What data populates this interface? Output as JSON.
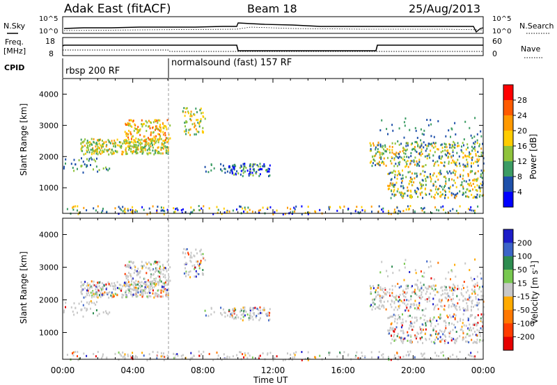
{
  "header": {
    "radar": "Adak East (fitACF)",
    "beam": "Beam 18",
    "date": "25/Aug/2013"
  },
  "panels": {
    "noise": {
      "left_label": "N.Sky",
      "right_label": "N.Search",
      "left_ticks": [
        "10^5",
        "10^0"
      ],
      "right_ticks": [
        "10^5",
        "10^0"
      ]
    },
    "freq": {
      "left_label_1": "Freq.",
      "left_label_2": "[MHz]",
      "right_label": "Nave",
      "left_ticks": [
        "18",
        "8"
      ],
      "right_ticks": [
        "60",
        "0"
      ]
    },
    "cpid": {
      "label": "CPID",
      "segments": [
        "rbsp 200 RF",
        "normalsound (fast) 157 RF"
      ]
    }
  },
  "colorbars": {
    "power": {
      "label": "Power [dB]",
      "ticks": [
        "28",
        "24",
        "20",
        "16",
        "12",
        "8",
        "4"
      ],
      "colors": [
        "#ff0000",
        "#ff5a00",
        "#ff9900",
        "#ffcc00",
        "#8fc33c",
        "#3c9c64",
        "#1e50aa",
        "#0000ff"
      ]
    },
    "velocity": {
      "label_main": "Velocity [m s",
      "label_sup": "-1",
      "label_end": "]",
      "ticks": [
        "200",
        "100",
        "50",
        "15",
        "-15",
        "-50",
        "-100",
        "-200"
      ],
      "colors": [
        "#1c1cc8",
        "#3c64c8",
        "#2e8c50",
        "#78c850",
        "#c8c8c8",
        "#ffaa00",
        "#ff7800",
        "#ff3c00",
        "#e60000"
      ]
    }
  },
  "chart_data": [
    {
      "type": "heatmap",
      "title": "Power",
      "ylabel": "Slant Range [km]",
      "xlabel": "Time UT",
      "xlim": [
        0,
        24
      ],
      "ylim": [
        180,
        4500
      ],
      "x_ticks": [
        "00:00",
        "04:00",
        "08:00",
        "12:00",
        "16:00",
        "20:00",
        "00:00"
      ],
      "y_ticks": [
        "1000",
        "2000",
        "3000",
        "4000"
      ],
      "colorbar": "Power [dB]"
    },
    {
      "type": "heatmap",
      "title": "Velocity",
      "ylabel": "Slant Range [km]",
      "xlabel": "Time UT",
      "xlim": [
        0,
        24
      ],
      "ylim": [
        180,
        4500
      ],
      "x_ticks": [
        "00:00",
        "04:00",
        "08:00",
        "12:00",
        "16:00",
        "20:00",
        "00:00"
      ],
      "y_ticks": [
        "1000",
        "2000",
        "3000",
        "4000"
      ],
      "colorbar": "Velocity [m s-1]"
    }
  ],
  "x_axis_label": "Time UT"
}
